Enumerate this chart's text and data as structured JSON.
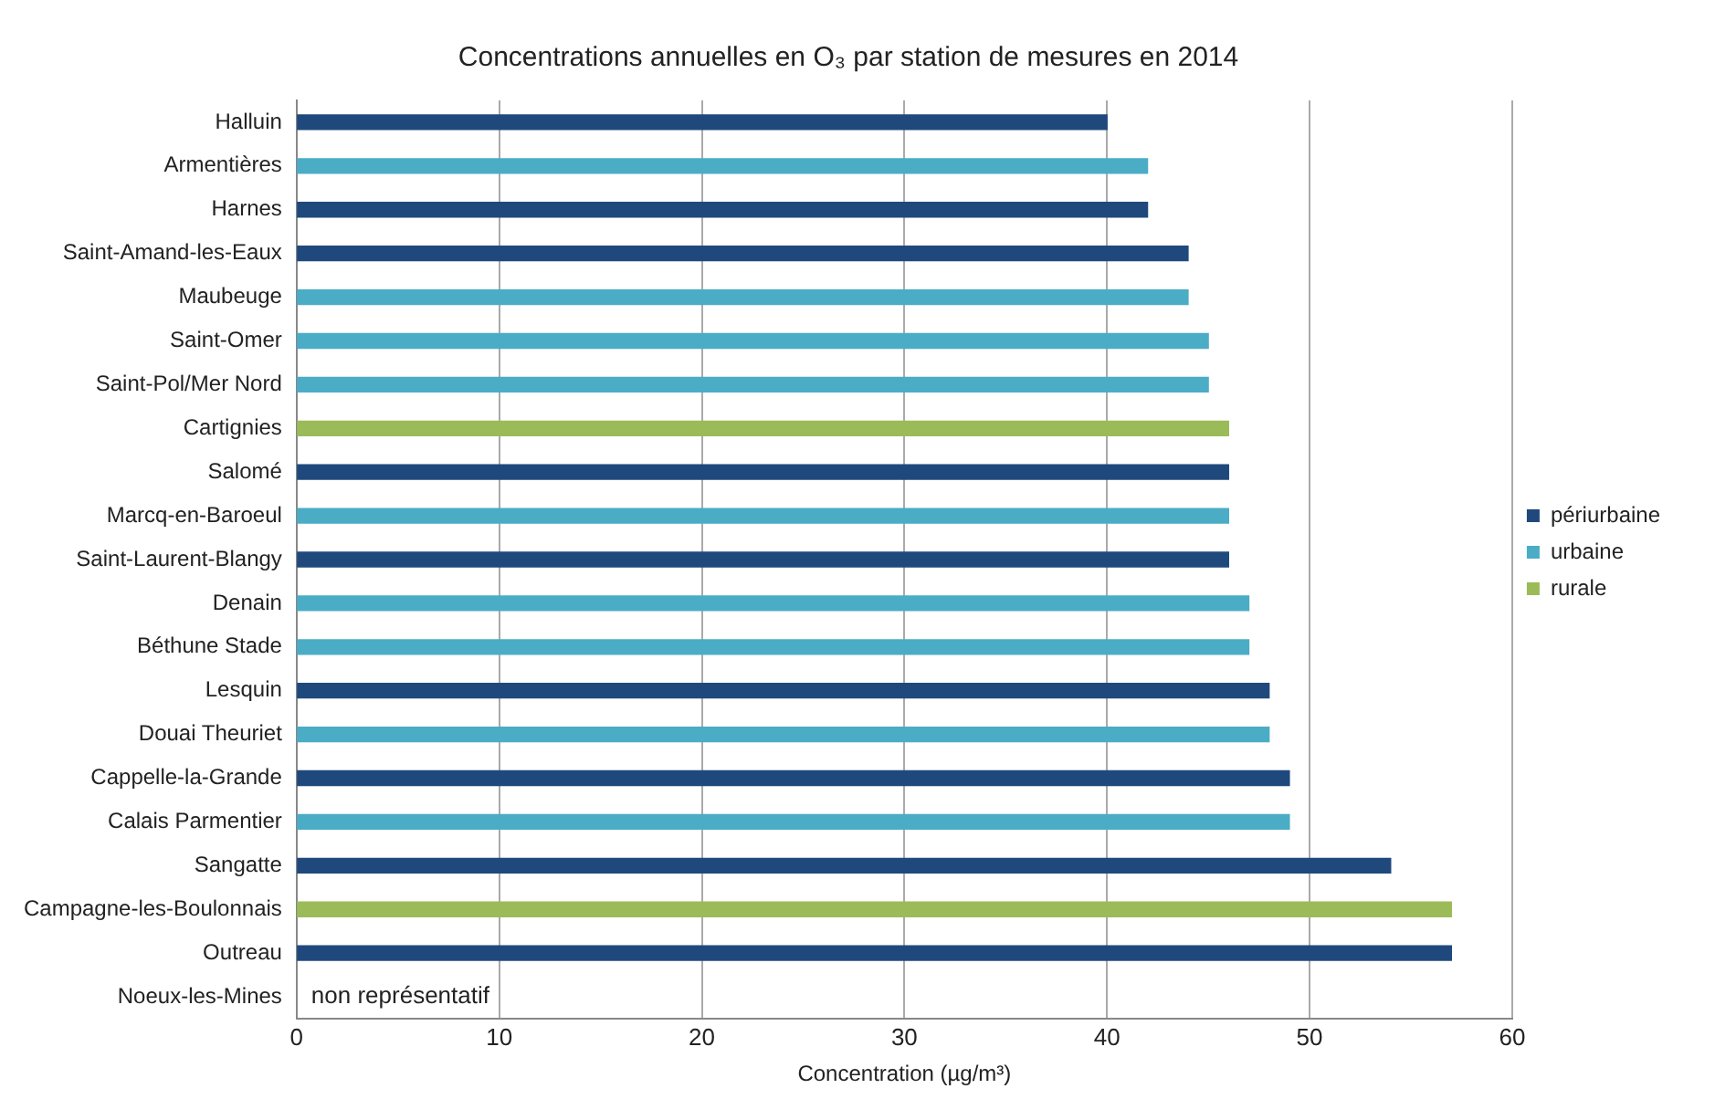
{
  "chart_data": {
    "type": "bar",
    "orientation": "horizontal",
    "title": "Concentrations annuelles en O₃ par station de mesures en 2014",
    "xlabel": "Concentration (µg/m³)",
    "categories": [
      "Halluin",
      "Armentières",
      "Harnes",
      "Saint-Amand-les-Eaux",
      "Maubeuge",
      "Saint-Omer",
      "Saint-Pol/Mer Nord",
      "Cartignies",
      "Salomé",
      "Marcq-en-Baroeul",
      "Saint-Laurent-Blangy",
      "Denain",
      "Béthune Stade",
      "Lesquin",
      "Douai Theuriet",
      "Cappelle-la-Grande",
      "Calais Parmentier",
      "Sangatte",
      "Campagne-les-Boulonnais",
      "Outreau",
      "Noeux-les-Mines"
    ],
    "series": [
      {
        "name": "périurbaine",
        "color": "#1f497d",
        "values": [
          40,
          null,
          42,
          44,
          null,
          null,
          null,
          null,
          46,
          null,
          46,
          null,
          null,
          48,
          null,
          49,
          null,
          54,
          null,
          57,
          null
        ]
      },
      {
        "name": "urbaine",
        "color": "#4bacc6",
        "values": [
          null,
          42,
          null,
          null,
          44,
          45,
          45,
          null,
          null,
          46,
          null,
          47,
          47,
          null,
          48,
          null,
          49,
          null,
          null,
          null,
          null
        ]
      },
      {
        "name": "rurale",
        "color": "#9bbb59",
        "values": [
          null,
          null,
          null,
          null,
          null,
          null,
          null,
          46,
          null,
          null,
          null,
          null,
          null,
          null,
          null,
          null,
          null,
          null,
          57,
          null,
          null
        ]
      }
    ],
    "xlim": [
      0,
      60
    ],
    "xticks": [
      0,
      10,
      20,
      30,
      40,
      50,
      60
    ],
    "grid": "x",
    "legend": "right",
    "annotations": [
      "non représentatif"
    ]
  }
}
